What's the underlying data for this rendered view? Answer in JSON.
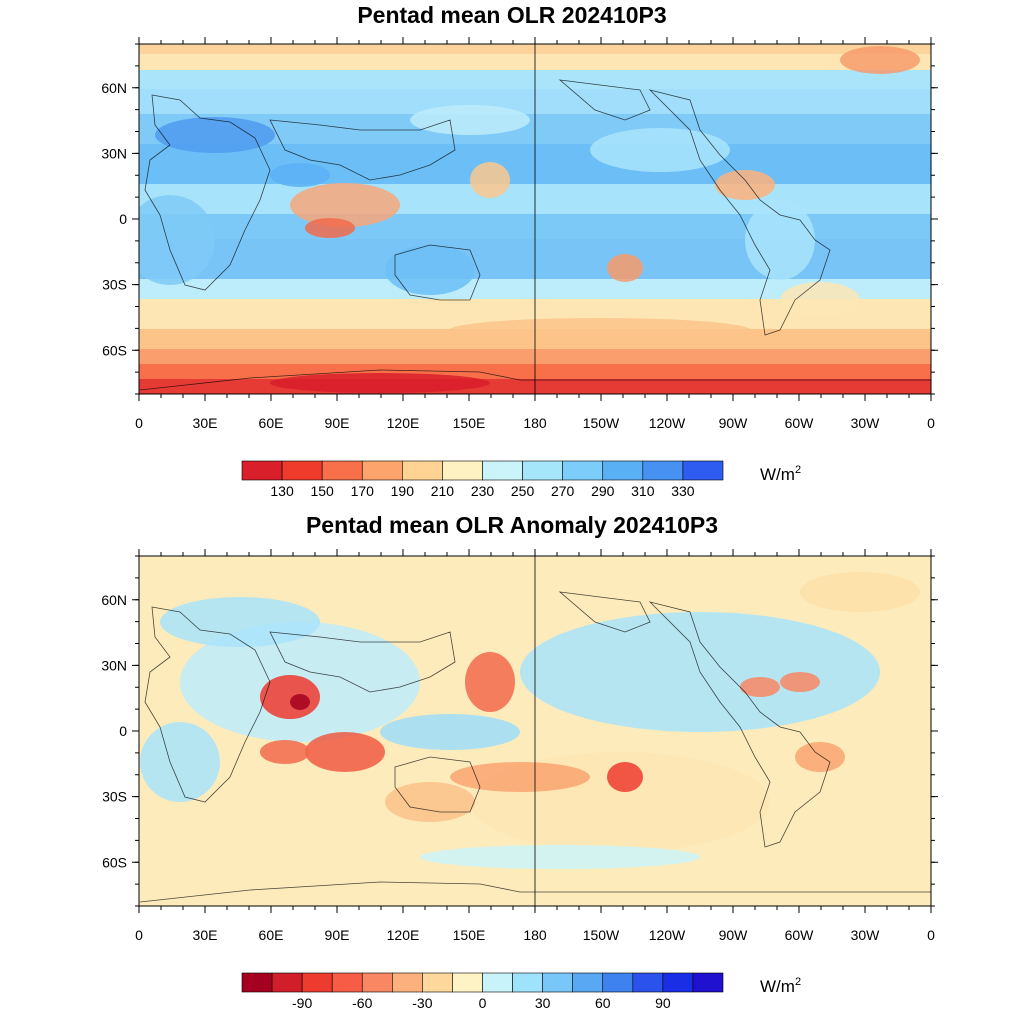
{
  "panels": [
    {
      "title": "Pentad mean OLR 202410P3",
      "units_base": "W/m",
      "units_exp": "2",
      "xticks": [
        "0",
        "30E",
        "60E",
        "90E",
        "120E",
        "150E",
        "180",
        "150W",
        "120W",
        "90W",
        "60W",
        "30W",
        "0"
      ],
      "yticks": [
        "60N",
        "30N",
        "0",
        "30S",
        "60S"
      ],
      "colorbar_colors": [
        "#d81f2a",
        "#ef3b2c",
        "#f7704a",
        "#fda46c",
        "#fed394",
        "#fef1c2",
        "#cbf4fa",
        "#a5e6fb",
        "#7ccdf9",
        "#5ab0f5",
        "#4791f2",
        "#2e5cf0"
      ],
      "colorbar_labels": [
        "130",
        "150",
        "170",
        "190",
        "210",
        "230",
        "250",
        "270",
        "290",
        "310",
        "330"
      ]
    },
    {
      "title": "Pentad mean OLR Anomaly 202410P3",
      "units_base": "W/m",
      "units_exp": "2",
      "xticks": [
        "0",
        "30E",
        "60E",
        "90E",
        "120E",
        "150E",
        "180",
        "150W",
        "120W",
        "90W",
        "60W",
        "30W",
        "0"
      ],
      "yticks": [
        "60N",
        "30N",
        "0",
        "30S",
        "60S"
      ],
      "colorbar_colors": [
        "#a5001f",
        "#d01e2a",
        "#ee3b2f",
        "#f65c46",
        "#f98764",
        "#fbb07e",
        "#fdd79c",
        "#fef3c4",
        "#c8f3fa",
        "#9ee2fb",
        "#78c7f8",
        "#59a8f3",
        "#3d82ee",
        "#2b52ec",
        "#1a2ee6",
        "#2010d0"
      ],
      "colorbar_labels": [
        "-90",
        "-60",
        "-30",
        "0",
        "30",
        "60",
        "90"
      ]
    }
  ]
}
